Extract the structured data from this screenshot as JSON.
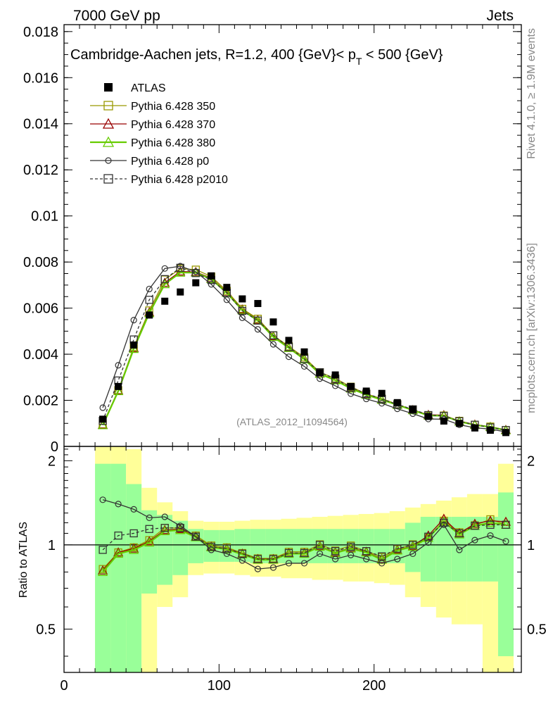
{
  "header": {
    "left": "7000 GeV pp",
    "right": "Jets"
  },
  "side_labels": {
    "rivet": "Rivet 4.1.0, ≥ 1.9M events",
    "mcplots": "mcplots.cern.ch [arXiv:1306.3436]"
  },
  "chart_data": {
    "type": "line",
    "title": "Cambridge-Aachen jets, R=1.2, 400 {GeV}< p_T < 500 {GeV}",
    "title_parts": {
      "main": "Cambridge-Aachen jets, R=1.2, 400 {GeV}< p",
      "sub": "T",
      "tail": " < 500 {GeV}"
    },
    "watermark": "(ATLAS_2012_I1094564)",
    "xlabel": "",
    "ylabel": "",
    "ratio_ylabel": "Ratio to ATLAS",
    "xlim": [
      0,
      295
    ],
    "ylim": [
      0,
      0.0183
    ],
    "ratio_ylim": [
      0.35,
      2.25
    ],
    "x_ticks": [
      "0",
      "100",
      "200"
    ],
    "y_ticks": [
      "0",
      "0.002",
      "0.004",
      "0.006",
      "0.008",
      "0.01",
      "0.012",
      "0.014",
      "0.016",
      "0.018"
    ],
    "ratio_ticks": [
      "0.5",
      "1",
      "2"
    ],
    "ratio_tick_values": [
      0.5,
      1,
      2
    ],
    "x": [
      25,
      35,
      45,
      55,
      65,
      75,
      85,
      95,
      105,
      115,
      125,
      135,
      145,
      155,
      165,
      175,
      185,
      195,
      205,
      215,
      225,
      235,
      245,
      255,
      265,
      275,
      285
    ],
    "data": {
      "name": "ATLAS",
      "values": [
        0.00118,
        0.0026,
        0.0044,
        0.0057,
        0.0063,
        0.0067,
        0.0071,
        0.0074,
        0.0069,
        0.0064,
        0.0062,
        0.0054,
        0.0046,
        0.0041,
        0.0032,
        0.0031,
        0.0026,
        0.0024,
        0.0023,
        0.0019,
        0.0016,
        0.0013,
        0.0011,
        0.001,
        0.0008,
        0.0007,
        0.0006
      ]
    },
    "series": [
      {
        "name": "Pythia 6.428 350",
        "color": "#999900",
        "marker": "square",
        "dash": "",
        "values": [
          0.00096,
          0.00244,
          0.00431,
          0.0059,
          0.00724,
          0.00771,
          0.00767,
          0.00737,
          0.00675,
          0.00597,
          0.00554,
          0.00482,
          0.00434,
          0.00386,
          0.00322,
          0.00295,
          0.00259,
          0.00228,
          0.00207,
          0.00183,
          0.00159,
          0.00134,
          0.00134,
          0.00111,
          0.00094,
          0.00086,
          0.00071
        ]
      },
      {
        "name": "Pythia 6.428 370",
        "color": "#990000",
        "marker": "triangle",
        "dash": "",
        "values": [
          0.00094,
          0.00243,
          0.00427,
          0.00582,
          0.0071,
          0.00759,
          0.00757,
          0.0073,
          0.00669,
          0.00594,
          0.00549,
          0.00478,
          0.00429,
          0.0038,
          0.00316,
          0.00289,
          0.00253,
          0.00226,
          0.00203,
          0.00181,
          0.00158,
          0.00137,
          0.00136,
          0.00109,
          0.00095,
          0.00085,
          0.00072
        ]
      },
      {
        "name": "Pythia 6.428 380",
        "color": "#66cc00",
        "marker": "triangle",
        "dash": "",
        "values": [
          0.00092,
          0.0024,
          0.00423,
          0.00578,
          0.00704,
          0.00754,
          0.00754,
          0.00726,
          0.00666,
          0.00591,
          0.00546,
          0.00475,
          0.00427,
          0.00378,
          0.00315,
          0.00287,
          0.00251,
          0.00224,
          0.00202,
          0.0018,
          0.00157,
          0.00134,
          0.00133,
          0.00108,
          0.00093,
          0.00084,
          0.0007
        ]
      },
      {
        "name": "Pythia 6.428 p0",
        "color": "#333333",
        "marker": "circle",
        "dash": "",
        "values": [
          0.00168,
          0.00352,
          0.00548,
          0.00683,
          0.00772,
          0.00782,
          0.00758,
          0.00703,
          0.00636,
          0.00558,
          0.00508,
          0.00443,
          0.00389,
          0.00347,
          0.00294,
          0.00263,
          0.00229,
          0.00206,
          0.00187,
          0.00163,
          0.00142,
          0.00119,
          0.00118,
          0.00094,
          0.00081,
          0.00075,
          0.00063
        ]
      },
      {
        "name": "Pythia 6.428 p2010",
        "color": "#333333",
        "marker": "square",
        "dash": "4,3",
        "values": [
          0.00111,
          0.00286,
          0.00464,
          0.00636,
          0.00726,
          0.00775,
          0.00752,
          0.00722,
          0.00667,
          0.00588,
          0.00546,
          0.00482,
          0.00431,
          0.0038,
          0.00322,
          0.00293,
          0.00256,
          0.00229,
          0.00206,
          0.00182,
          0.00161,
          0.00136,
          0.00132,
          0.00109,
          0.00094,
          0.00082,
          0.00071
        ]
      }
    ],
    "ratio_series": [
      {
        "name": "Pythia 6.428 350",
        "values": [
          0.82,
          0.94,
          0.98,
          1.04,
          1.15,
          1.15,
          1.08,
          0.995,
          0.98,
          0.935,
          0.895,
          0.895,
          0.945,
          0.945,
          1.005,
          0.955,
          0.995,
          0.95,
          0.905,
          0.965,
          1.005,
          1.06,
          1.22,
          1.11,
          1.175,
          1.235,
          1.18
        ]
      },
      {
        "name": "Pythia 6.428 370",
        "values": [
          0.81,
          0.94,
          0.97,
          1.03,
          1.13,
          1.14,
          1.07,
          0.985,
          0.97,
          0.93,
          0.89,
          0.89,
          0.935,
          0.935,
          0.99,
          0.94,
          0.975,
          0.945,
          0.89,
          0.96,
          0.99,
          1.08,
          1.24,
          1.1,
          1.19,
          1.22,
          1.21
        ]
      },
      {
        "name": "Pythia 6.428 380",
        "values": [
          0.8,
          0.93,
          0.96,
          1.02,
          1.12,
          1.13,
          1.065,
          0.98,
          0.965,
          0.925,
          0.885,
          0.885,
          0.93,
          0.93,
          0.985,
          0.935,
          0.97,
          0.94,
          0.885,
          0.955,
          0.985,
          1.06,
          1.21,
          1.09,
          1.17,
          1.2,
          1.18
        ]
      },
      {
        "name": "Pythia 6.428 p0",
        "values": [
          1.45,
          1.4,
          1.34,
          1.25,
          1.26,
          1.17,
          1.07,
          0.96,
          0.93,
          0.88,
          0.82,
          0.83,
          0.86,
          0.86,
          0.93,
          0.89,
          0.92,
          0.89,
          0.86,
          0.89,
          0.93,
          1.02,
          1.18,
          0.96,
          1.04,
          1.08,
          1.03
        ]
      },
      {
        "name": "Pythia 6.428 p2010",
        "values": [
          0.96,
          1.08,
          1.1,
          1.14,
          1.15,
          1.15,
          1.07,
          0.985,
          0.97,
          0.93,
          0.89,
          0.89,
          0.935,
          0.935,
          1.0,
          0.95,
          0.985,
          0.95,
          0.91,
          0.97,
          1.0,
          1.07,
          1.2,
          1.1,
          1.17,
          1.18,
          1.18
        ]
      }
    ],
    "ratio_bands": {
      "edges": [
        20,
        30,
        40,
        50,
        60,
        70,
        80,
        90,
        100,
        110,
        120,
        130,
        140,
        150,
        160,
        170,
        180,
        190,
        200,
        210,
        220,
        230,
        240,
        250,
        260,
        270,
        280,
        290
      ],
      "inner_lo": [
        0.3,
        0.3,
        0.3,
        0.67,
        0.72,
        0.78,
        0.86,
        0.87,
        0.87,
        0.87,
        0.86,
        0.86,
        0.86,
        0.86,
        0.86,
        0.86,
        0.86,
        0.86,
        0.86,
        0.86,
        0.8,
        0.74,
        0.74,
        0.74,
        0.74,
        0.74,
        0.4
      ],
      "inner_hi": [
        1.95,
        1.95,
        1.65,
        1.33,
        1.28,
        1.22,
        1.14,
        1.13,
        1.13,
        1.14,
        1.14,
        1.14,
        1.14,
        1.14,
        1.14,
        1.14,
        1.14,
        1.14,
        1.14,
        1.14,
        1.2,
        1.26,
        1.26,
        1.26,
        1.26,
        1.26,
        1.54
      ],
      "outer_lo": [
        0.3,
        0.3,
        0.3,
        0.3,
        0.6,
        0.65,
        0.78,
        0.79,
        0.79,
        0.78,
        0.77,
        0.77,
        0.76,
        0.76,
        0.75,
        0.75,
        0.74,
        0.74,
        0.73,
        0.72,
        0.65,
        0.6,
        0.55,
        0.52,
        0.52,
        0.3,
        0.3
      ],
      "outer_hi": [
        2.3,
        2.3,
        2.2,
        1.6,
        1.42,
        1.32,
        1.22,
        1.21,
        1.21,
        1.22,
        1.23,
        1.23,
        1.24,
        1.25,
        1.26,
        1.27,
        1.28,
        1.29,
        1.3,
        1.32,
        1.36,
        1.4,
        1.44,
        1.48,
        1.52,
        1.52,
        1.95
      ]
    }
  }
}
